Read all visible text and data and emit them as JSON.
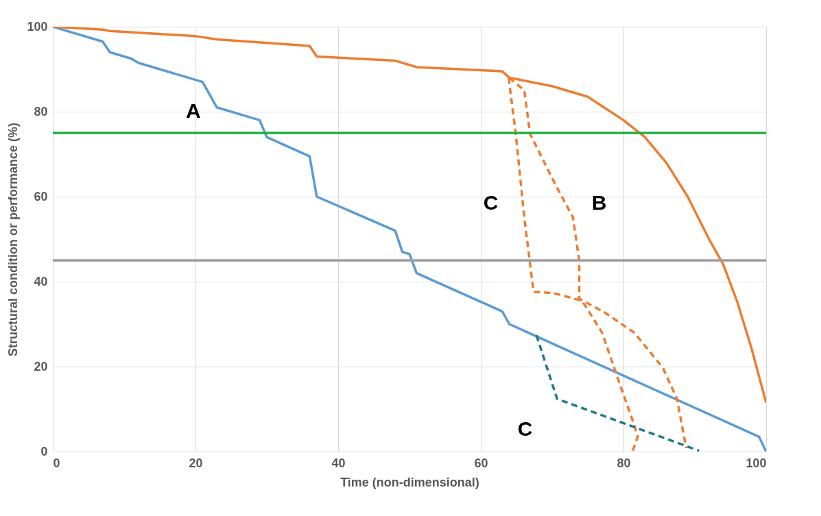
{
  "chart_data": {
    "type": "line",
    "xlabel": "Time (non-dimensional)",
    "ylabel": "Structural condition or performance (%)",
    "xlim": [
      0,
      100
    ],
    "ylim": [
      0,
      100
    ],
    "xticks": [
      0,
      20,
      40,
      60,
      80,
      100
    ],
    "yticks": [
      0,
      20,
      40,
      60,
      80,
      100
    ],
    "grid": true,
    "series": [
      {
        "color": "#5b9bd5",
        "line_style": "solid",
        "x": [
          0,
          7,
          8,
          11,
          12,
          21,
          23,
          29,
          30,
          36,
          37,
          48,
          49,
          50,
          51,
          63,
          64,
          99,
          100
        ],
        "values": [
          100,
          96.5,
          94,
          92.5,
          91.5,
          87,
          81,
          78,
          74,
          69.5,
          60,
          52,
          47,
          46.5,
          42,
          33,
          30,
          3.5,
          0
        ]
      },
      {
        "color": "#ed7d31",
        "line_style": "solid",
        "x": [
          0,
          7,
          8,
          20,
          23,
          36,
          37,
          48,
          50,
          51,
          63,
          64,
          70,
          75,
          80,
          83,
          86,
          89,
          92,
          94,
          96,
          98,
          100
        ],
        "values": [
          100,
          99.3,
          99,
          97.8,
          97,
          95.5,
          93,
          92,
          91,
          90.5,
          89.5,
          88,
          86,
          83.5,
          78,
          74,
          68,
          60,
          50,
          44,
          35,
          24,
          11.5
        ]
      },
      {
        "color": "#ed7d31",
        "line_style": "dashed",
        "x": [
          64,
          66.1,
          66.9,
          70.5,
          72.9,
          73.8,
          73.8,
          77.4,
          81.5,
          85.5,
          87.5,
          88.8
        ],
        "values": [
          88,
          85,
          74.8,
          62.7,
          55.2,
          45,
          36,
          32.7,
          28,
          19.8,
          12.4,
          0.8
        ]
      },
      {
        "color": "#ed7d31",
        "line_style": "dashed",
        "x": [
          63.9,
          64.9,
          66.1,
          67.4,
          70.2,
          74.2,
          77,
          79.5,
          81.5,
          82,
          81.3
        ],
        "values": [
          88,
          74.8,
          55,
          37.6,
          37.3,
          35.5,
          28,
          15.8,
          6.3,
          3.5,
          0.2
        ]
      },
      {
        "color": "#1f7a8c",
        "line_style": "dashed",
        "x": [
          67.8,
          70.7,
          90.6
        ],
        "values": [
          27.4,
          12.4,
          0.2
        ]
      }
    ],
    "ref_lines": [
      {
        "axis": "y",
        "value": 75,
        "color": "#1aaf3c"
      },
      {
        "axis": "y",
        "value": 45,
        "color": "#9e9e9e"
      }
    ],
    "annotations": [
      "A",
      "C",
      "B",
      "C"
    ]
  }
}
